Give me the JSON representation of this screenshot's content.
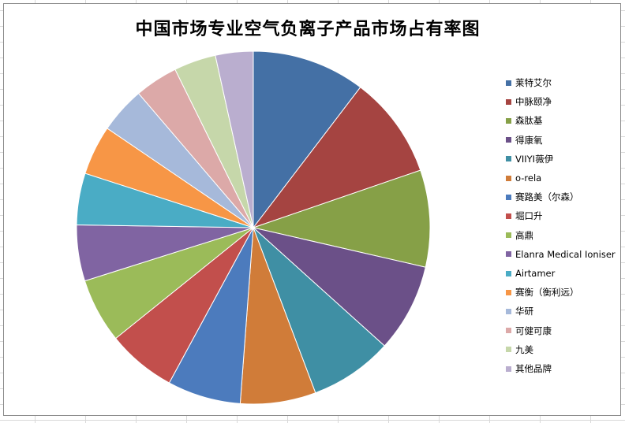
{
  "chart_data": {
    "type": "pie",
    "title": "中国市场专业空气负离子产品市场占有率图",
    "legend_position": "right",
    "slices": [
      {
        "label": "莱特艾尔",
        "value": 10.5,
        "color": "#4470a5"
      },
      {
        "label": "中脉颐净",
        "value": 9.5,
        "color": "#a54441"
      },
      {
        "label": "森肽基",
        "value": 9.0,
        "color": "#86a047"
      },
      {
        "label": "得康氧",
        "value": 8.2,
        "color": "#6b5088"
      },
      {
        "label": "VIIYI薇伊",
        "value": 7.7,
        "color": "#3f8fa4"
      },
      {
        "label": "o-rela",
        "value": 7.0,
        "color": "#d07c39"
      },
      {
        "label": "赛路美（尔森）",
        "value": 6.8,
        "color": "#4c7bbd"
      },
      {
        "label": "堀口升",
        "value": 6.4,
        "color": "#c24f4c"
      },
      {
        "label": "高鼎",
        "value": 6.0,
        "color": "#9bbb59"
      },
      {
        "label": "Elanra Medical Ioniser",
        "value": 5.2,
        "color": "#8064a2"
      },
      {
        "label": "Airtamer",
        "value": 4.8,
        "color": "#4aacc5"
      },
      {
        "label": "赛衡（衡利远）",
        "value": 4.6,
        "color": "#f79646"
      },
      {
        "label": "华研",
        "value": 4.3,
        "color": "#a6b9da"
      },
      {
        "label": "可健可康",
        "value": 4.0,
        "color": "#dca9a8"
      },
      {
        "label": "九美",
        "value": 3.9,
        "color": "#c6d7aa"
      },
      {
        "label": "其他品牌",
        "value": 3.5,
        "color": "#baaecf"
      }
    ]
  }
}
